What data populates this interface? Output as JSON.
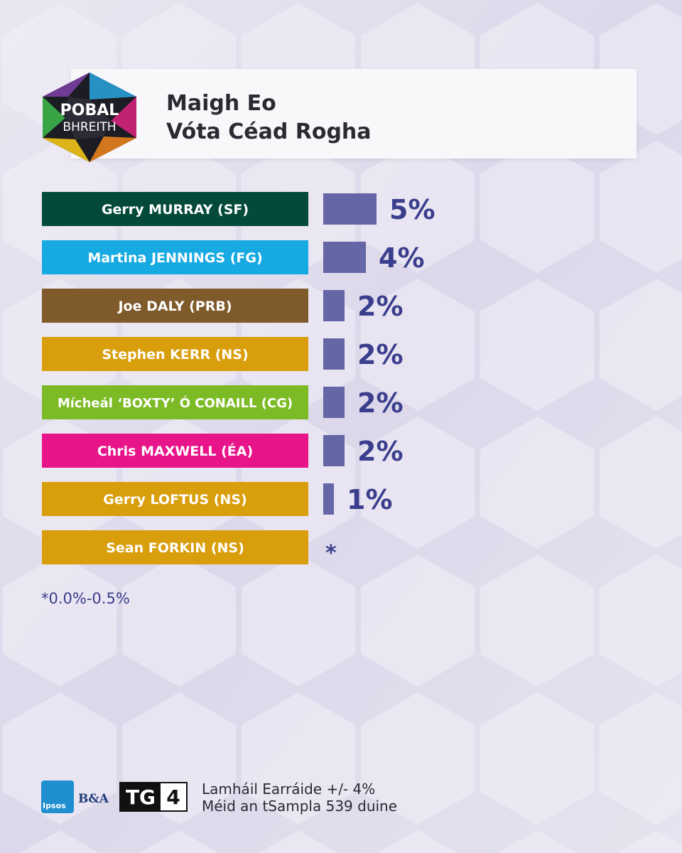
{
  "header": {
    "logo_line1": "POBAL",
    "logo_line2": "BHREITH",
    "title": "Maigh Eo",
    "subtitle": "Vóta Céad Rogha"
  },
  "chart_data": {
    "type": "bar",
    "orientation": "horizontal",
    "title": "Maigh Eo",
    "subtitle": "Vóta Céad Rogha",
    "categories": [
      "Gerry MURRAY (SF)",
      "Martina JENNINGS (FG)",
      "Joe DALY (PRB)",
      "Stephen KERR (NS)",
      "Mícheál ‘BOXTY’ Ó CONAILL (CG)",
      "Chris MAXWELL (ÉA)",
      "Gerry LOFTUS (NS)",
      "Sean FORKIN (NS)"
    ],
    "values": [
      5,
      4,
      2,
      2,
      2,
      2,
      1,
      0.25
    ],
    "value_labels": [
      "5%",
      "4%",
      "2%",
      "2%",
      "2%",
      "2%",
      "1%",
      "*"
    ],
    "category_colors": [
      "#034a3b",
      "#17a9e1",
      "#7f5a2a",
      "#d99e0b",
      "#7dbb26",
      "#e8148a",
      "#d99e0b",
      "#d99e0b"
    ],
    "bar_color": "#6466a6",
    "grid": false,
    "legend": "none"
  },
  "footnote": "*0.0%-0.5%",
  "footer": {
    "ipsos_label": "Ipsos",
    "ba_label": "B&A",
    "tg_label": "TG",
    "four_label": "4",
    "margin_error": "Lamháil Earráide +/- 4%",
    "sample_size": "Méid an tSampla 539 duine"
  }
}
